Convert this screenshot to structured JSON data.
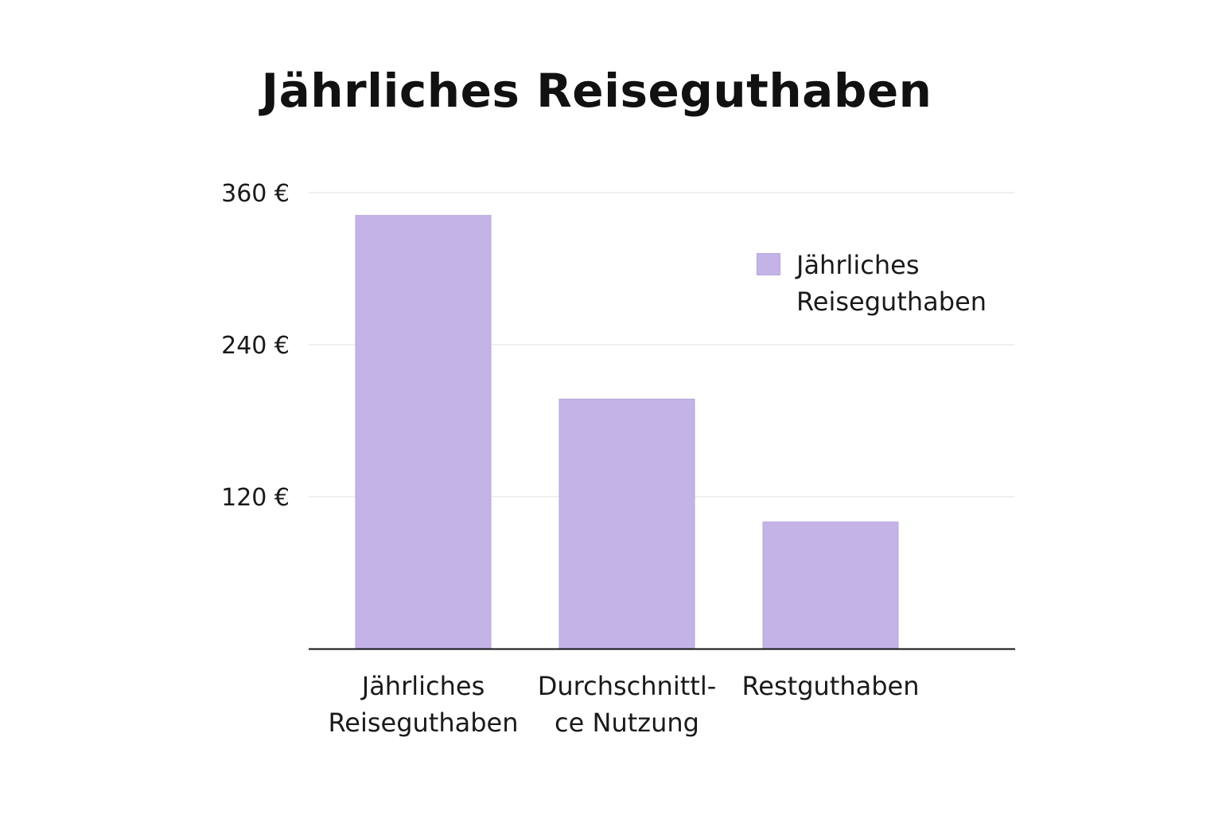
{
  "title": "Jährliches Reiseguthaben",
  "chart_data": {
    "type": "bar",
    "title": "Jährliches Reiseguthaben",
    "xlabel": "",
    "ylabel": "",
    "categories": [
      "Jährliches Reiseguthaben",
      "Durchschnittl-ce Nutzung",
      "Restguthaben"
    ],
    "category_lines": [
      [
        "Jährliches",
        "Reiseguthaben"
      ],
      [
        "Durchschnittl-",
        "ce Nutzung"
      ],
      [
        "Restguthaben"
      ]
    ],
    "series": [
      {
        "name": "Jährliches Reiseguthaben",
        "values": [
          342,
          197,
          100
        ]
      }
    ],
    "ylim": [
      0,
      360
    ],
    "yticks": [
      120,
      240,
      360
    ],
    "ytick_labels": [
      "120 €",
      "240 €",
      "360 €"
    ],
    "grid": true,
    "legend_position": "top-right",
    "bar_color": "#c4b3e6"
  },
  "legend": {
    "label": "Jährliches Reiseguthaben"
  }
}
